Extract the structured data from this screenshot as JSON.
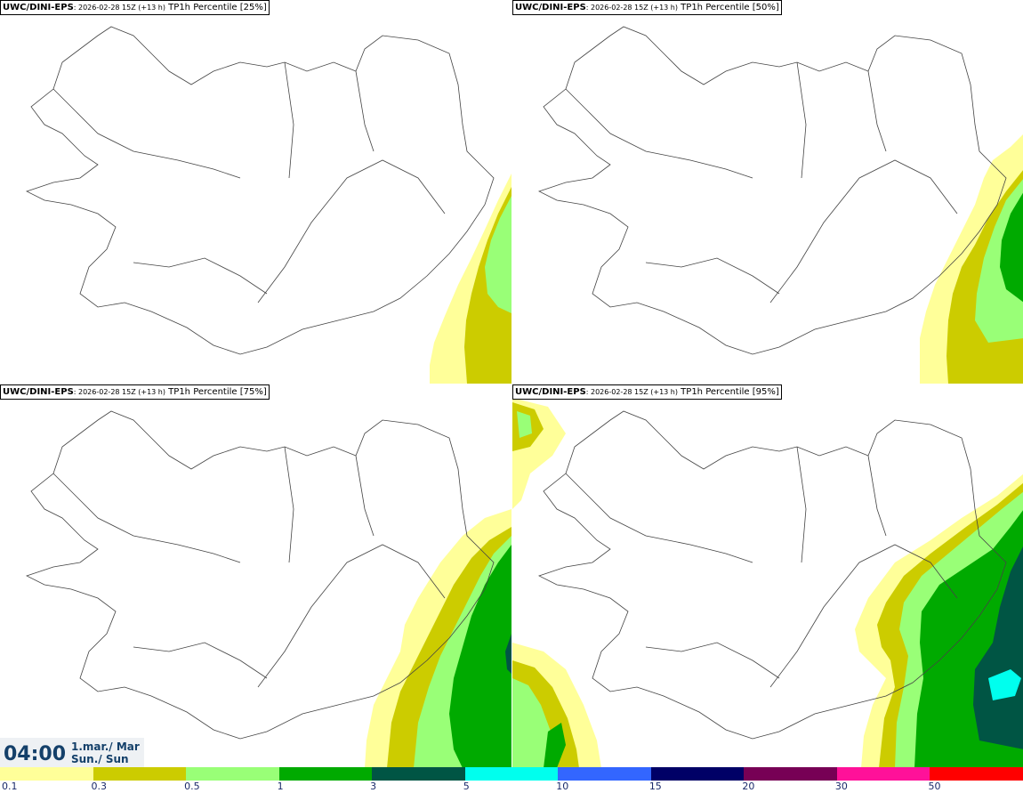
{
  "panels": [
    {
      "model": "UWC/DINI-EPS",
      "run": ": 2026-02-28 15Z ",
      "lead": "(+13 h)",
      "field": " TP1h Percentile [25%]"
    },
    {
      "model": "UWC/DINI-EPS",
      "run": ": 2026-02-28 15Z ",
      "lead": "(+13 h)",
      "field": " TP1h Percentile [50%]"
    },
    {
      "model": "UWC/DINI-EPS",
      "run": ": 2026-02-28 15Z ",
      "lead": "(+13 h)",
      "field": " TP1h Percentile [75%]"
    },
    {
      "model": "UWC/DINI-EPS",
      "run": ": 2026-02-28 15Z ",
      "lead": "(+13 h)",
      "field": " TP1h Percentile [95%]"
    }
  ],
  "timebox": {
    "time": "04:00",
    "date_line1": "1.mar./ Mar",
    "date_line2": "Sun./ Sun"
  },
  "legend": {
    "colors": [
      "#ffff99",
      "#cccc00",
      "#99ff77",
      "#00aa00",
      "#005544",
      "#00ffee",
      "#3366ff",
      "#000066",
      "#770055",
      "#ff1199",
      "#ff0000"
    ],
    "labels": [
      "0.1",
      "0.3",
      "0.5",
      "1",
      "3",
      "5",
      "10",
      "15",
      "20",
      "30",
      "50"
    ]
  }
}
